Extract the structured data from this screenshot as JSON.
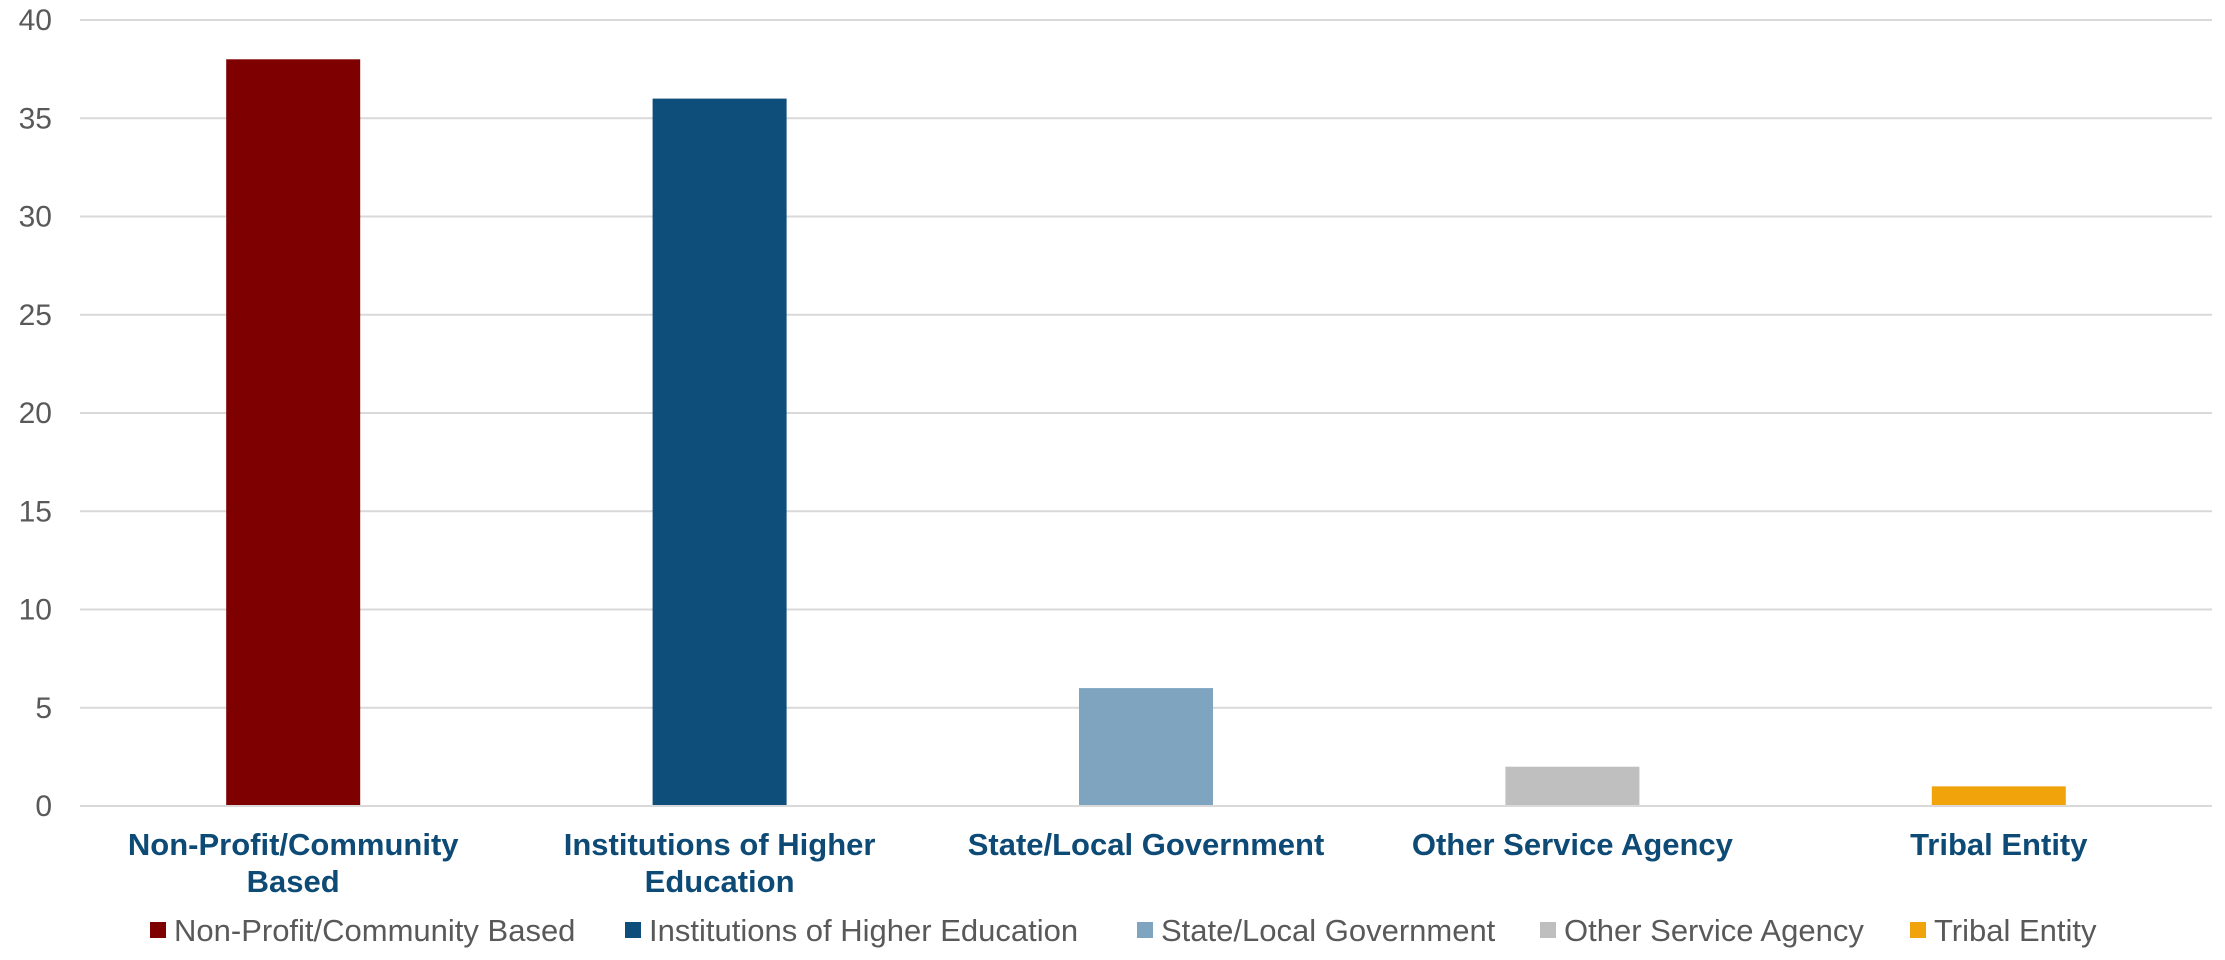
{
  "chart_data": {
    "type": "bar",
    "categories": [
      [
        "Non-Profit/Community",
        "Based"
      ],
      [
        "Institutions of Higher",
        "Education"
      ],
      [
        "State/Local Government"
      ],
      [
        "Other Service Agency"
      ],
      [
        "Tribal Entity"
      ]
    ],
    "values": [
      38,
      36,
      6,
      2,
      1
    ],
    "colors": [
      "#7f0000",
      "#0d4e7a",
      "#7ea4bf",
      "#bfbfbf",
      "#f0a30a"
    ],
    "legend": [
      "Non-Profit/Community Based",
      "Institutions of Higher Education",
      "State/Local Government",
      "Other Service Agency",
      "Tribal Entity"
    ],
    "legend_position": "bottom",
    "ylim": [
      0,
      40
    ],
    "yticks": [
      "0",
      "5",
      "10",
      "15",
      "20",
      "25",
      "30",
      "35",
      "40"
    ],
    "grid": true,
    "title": "",
    "xlabel": "",
    "ylabel": ""
  }
}
